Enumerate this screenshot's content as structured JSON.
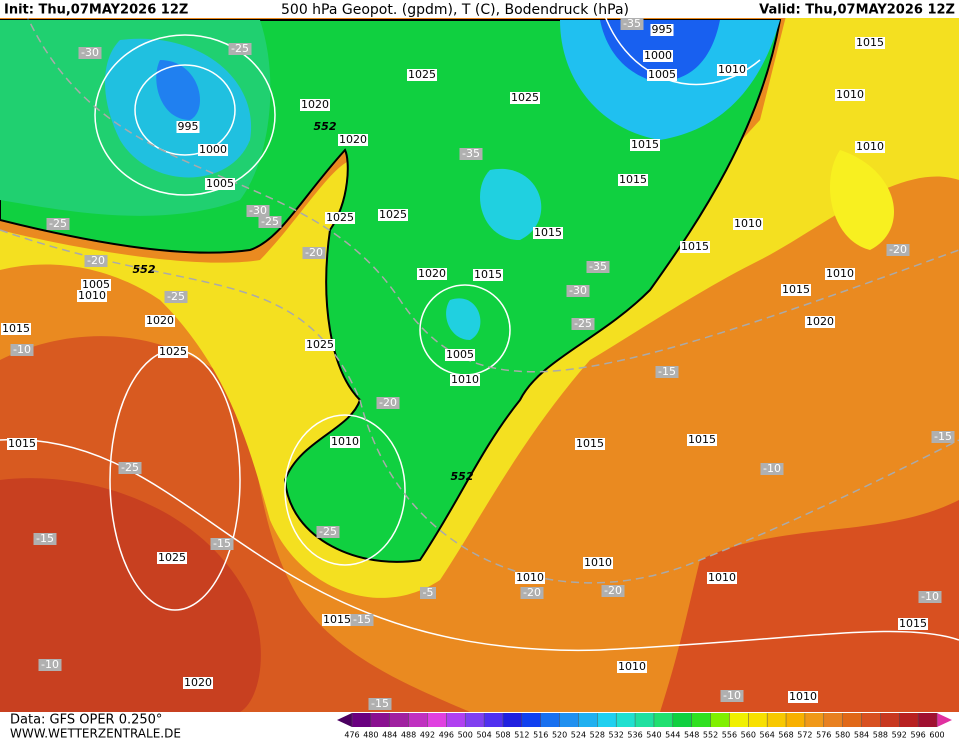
{
  "header": {
    "init": "Init: Thu,07MAY2026 12Z",
    "title": "500 hPa Geopot. (gpdm), T (C), Bodendruck (hPa)",
    "valid": "Valid: Thu,07MAY2026 12Z"
  },
  "footer": {
    "data_source": "Data: GFS OPER 0.250°",
    "website": "WWW.WETTERZENTRALE.DE"
  },
  "colorbar": {
    "ticks": [
      476,
      480,
      484,
      488,
      492,
      496,
      500,
      504,
      508,
      512,
      516,
      520,
      524,
      528,
      532,
      536,
      540,
      544,
      548,
      552,
      556,
      560,
      564,
      568,
      572,
      576,
      580,
      584,
      588,
      592,
      596,
      600
    ],
    "colors": [
      "#4b0060",
      "#6a0080",
      "#8a1090",
      "#a020a0",
      "#c030c0",
      "#e040e0",
      "#b040f0",
      "#8040f0",
      "#5030f0",
      "#2020e0",
      "#1040f0",
      "#1870f0",
      "#2090f0",
      "#20b0f0",
      "#20d0f0",
      "#20e0d0",
      "#20e0a0",
      "#20e070",
      "#10d040",
      "#30e020",
      "#80f000",
      "#f0f000",
      "#f8e000",
      "#f8c800",
      "#f8b000",
      "#f09818",
      "#e88020",
      "#e06818",
      "#d85020",
      "#c83820",
      "#b82020",
      "#a01030",
      "#e030a0"
    ]
  },
  "map": {
    "isobar_labels": [
      "995",
      "1000",
      "1005",
      "1020",
      "1020",
      "1025",
      "1025",
      "1025",
      "1025",
      "1020",
      "1015",
      "1005",
      "1010",
      "1025",
      "1010",
      "1015",
      "1015",
      "1015",
      "995",
      "1000",
      "1005",
      "1010",
      "1015",
      "1010",
      "1010",
      "1010",
      "1015",
      "1010",
      "1015",
      "1020",
      "1015",
      "1015",
      "1010",
      "1010",
      "1010",
      "1015",
      "1010",
      "1010",
      "1020",
      "1025",
      "1015",
      "1015",
      "1015",
      "1020",
      "1025",
      "1005",
      "1010"
    ],
    "temperature_labels": [
      "-30",
      "-25",
      "-30",
      "-25",
      "-25",
      "-20",
      "-20",
      "-25",
      "-10",
      "-35",
      "-35",
      "-35",
      "-30",
      "-25",
      "-20",
      "-25",
      "-25",
      "-15",
      "-15",
      "-10",
      "-5",
      "-15",
      "-20",
      "-20",
      "-15",
      "-10",
      "-10",
      "-10",
      "-15",
      "-15",
      "-20"
    ],
    "geopotential_labels": [
      "552",
      "552",
      "552"
    ]
  }
}
